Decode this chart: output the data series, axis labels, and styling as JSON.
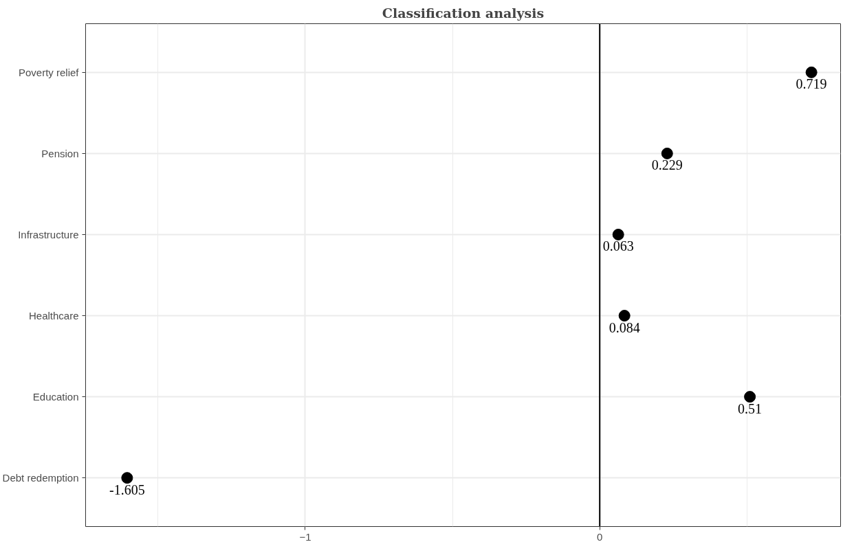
{
  "chart_data": {
    "type": "scatter",
    "title": "Classification analysis",
    "orientation": "horizontal",
    "categories": [
      "Poverty relief",
      "Pension",
      "Infrastructure",
      "Healthcare",
      "Education",
      "Debt redemption"
    ],
    "series": [
      {
        "color": "#000000",
        "values": [
          0.719,
          0.229,
          0.063,
          0.084,
          0.51,
          -1.605
        ]
      }
    ],
    "xlim": [
      -1.746,
      0.818
    ],
    "xticks": [
      -1,
      0
    ],
    "ref_lines": [
      {
        "axis": "x",
        "value": 0,
        "color": "#000000"
      }
    ],
    "data_labels": true,
    "grid": true,
    "marker": "circle"
  }
}
